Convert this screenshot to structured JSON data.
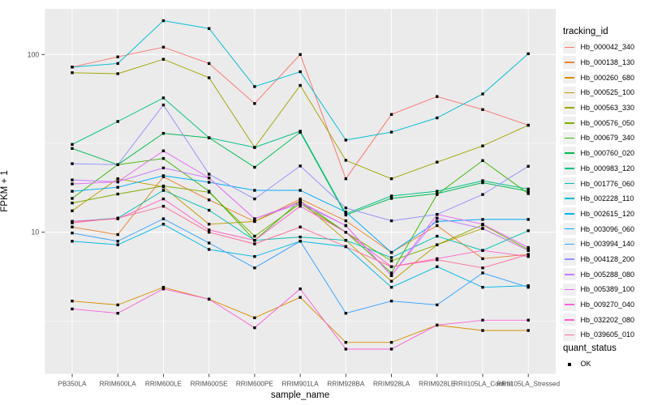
{
  "figure": {
    "background": "#FFFFFF",
    "panel_background": "#EBEBEB",
    "gridline_color": "#FFFFFF",
    "tick_label_color": "#4D4D4D",
    "tick_mark_color": "#333333",
    "point_color": "#000000"
  },
  "chart_data": {
    "type": "line",
    "title": "",
    "xlabel": "sample_name",
    "ylabel": "FPKM + 1",
    "y_scale": "log10",
    "y_tick_labels": [
      "100",
      "10"
    ],
    "y_ticks": [
      100,
      10
    ],
    "y_minor_gridlines": [
      31.62,
      3.162
    ],
    "ylim": [
      1.6,
      180
    ],
    "grid": true,
    "legend_position": "right",
    "point_shape": "filled-square",
    "categories": [
      "PB350LA",
      "RRIM600LA",
      "RRIM600LE",
      "RRIM600SE",
      "RRIM600PE",
      "RRIM901LA",
      "RRIM928BA",
      "RRIM928LA",
      "RRIM928LE",
      "RRII105LA_Control",
      "RRII105LA_Stressed"
    ],
    "series": [
      {
        "name": "Hb_000042_340",
        "color": "#F8766D",
        "values": [
          85,
          97,
          110,
          89,
          53,
          100,
          20,
          46,
          58,
          49,
          40
        ]
      },
      {
        "name": "Hb_000138_130",
        "color": "#EA8331",
        "values": [
          10.7,
          9.7,
          20.5,
          15.2,
          11.5,
          15.4,
          11.6,
          7.7,
          10.9,
          7.1,
          7.5
        ]
      },
      {
        "name": "Hb_000260_680",
        "color": "#D89000",
        "values": [
          4.1,
          3.9,
          4.9,
          4.2,
          3.3,
          4.3,
          2.4,
          2.4,
          3.0,
          2.8,
          2.8
        ]
      },
      {
        "name": "Hb_000525_100",
        "color": "#C09B00",
        "values": [
          13.2,
          20.0,
          18.0,
          11.1,
          11.5,
          15.0,
          9.0,
          5.3,
          8.5,
          10.5,
          7.9
        ]
      },
      {
        "name": "Hb_000563_330",
        "color": "#A3A500",
        "values": [
          79,
          78,
          94,
          74,
          30,
          67,
          25.4,
          20,
          24.8,
          30.6,
          40
        ]
      },
      {
        "name": "Hb_000576_050",
        "color": "#7CAE00",
        "values": [
          14.6,
          16.4,
          18.2,
          16.8,
          9.5,
          14.5,
          10.0,
          6.9,
          8.5,
          11.0,
          8.0
        ]
      },
      {
        "name": "Hb_000679_340",
        "color": "#39B600",
        "values": [
          15.5,
          24.0,
          26.0,
          17.0,
          9.0,
          15.0,
          10.0,
          5.9,
          16.3,
          25.3,
          16.5
        ]
      },
      {
        "name": "Hb_000760_020",
        "color": "#00BB4E",
        "values": [
          29.6,
          24.0,
          36.0,
          34.0,
          23.2,
          36.5,
          12.5,
          15.5,
          16.5,
          19.0,
          17.0
        ]
      },
      {
        "name": "Hb_000983_120",
        "color": "#00C087",
        "values": [
          31.2,
          42.0,
          57.0,
          34.0,
          30.0,
          37.0,
          12.7,
          16.0,
          17.0,
          19.5,
          17.5
        ]
      },
      {
        "name": "Hb_001776_060",
        "color": "#00C0B2",
        "values": [
          11.5,
          12.0,
          17.2,
          13.3,
          9.0,
          9.4,
          9.0,
          7.2,
          9.5,
          7.9,
          10.2
        ]
      },
      {
        "name": "Hb_002228_110",
        "color": "#00BFD3",
        "values": [
          85,
          89,
          155,
          140,
          66,
          80,
          33,
          36.6,
          44,
          60,
          101
        ]
      },
      {
        "name": "Hb_002615_120",
        "color": "#00B8E7",
        "values": [
          8.9,
          8.5,
          11.1,
          8.0,
          7.3,
          8.9,
          8.3,
          4.9,
          6.4,
          4.9,
          5.0
        ]
      },
      {
        "name": "Hb_003096_060",
        "color": "#00ACFC",
        "values": [
          17.0,
          17.9,
          20.8,
          19.1,
          17.2,
          17.2,
          13.0,
          7.7,
          11.5,
          11.8,
          11.8
        ]
      },
      {
        "name": "Hb_003994_140",
        "color": "#35A2FF",
        "values": [
          9.9,
          8.9,
          11.9,
          8.7,
          6.3,
          8.9,
          3.5,
          4.1,
          3.9,
          5.9,
          4.9
        ]
      },
      {
        "name": "Hb_004128_200",
        "color": "#9590FF",
        "values": [
          24.3,
          24.0,
          52.0,
          21.2,
          15.4,
          23.6,
          13.7,
          11.6,
          12.6,
          16.3,
          23.5
        ]
      },
      {
        "name": "Hb_005288_080",
        "color": "#C77CFF",
        "values": [
          19.7,
          19.2,
          23.0,
          20.2,
          11.9,
          14.5,
          10.9,
          5.7,
          12.0,
          10.5,
          7.9
        ]
      },
      {
        "name": "Hb_005389_100",
        "color": "#E76BF3",
        "values": [
          18.7,
          19.2,
          28.7,
          20.2,
          11.9,
          14.8,
          10.9,
          5.7,
          12.6,
          11.1,
          8.2
        ]
      },
      {
        "name": "Hb_009270_040",
        "color": "#FA62DB",
        "values": [
          3.7,
          3.5,
          4.8,
          4.2,
          2.9,
          4.8,
          2.2,
          2.2,
          3.0,
          3.2,
          3.2
        ]
      },
      {
        "name": "Hb_032202_080",
        "color": "#FF61C9",
        "values": [
          11.5,
          11.9,
          15.4,
          10.3,
          9.0,
          14.0,
          10.0,
          6.4,
          7.1,
          7.9,
          7.3
        ]
      },
      {
        "name": "Hb_039605_010",
        "color": "#FF6A98",
        "values": [
          11.3,
          12.0,
          14.0,
          10.0,
          8.6,
          10.7,
          8.3,
          6.4,
          7.0,
          6.3,
          7.5
        ]
      }
    ]
  },
  "legend_tracking": {
    "title": "tracking_id"
  },
  "legend_quant": {
    "title": "quant_status",
    "items": [
      {
        "label": "OK"
      }
    ]
  }
}
